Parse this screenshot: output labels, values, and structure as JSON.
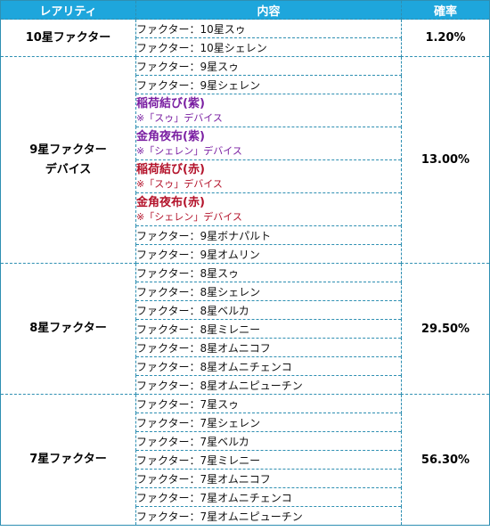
{
  "headers": {
    "rarity": "レアリティ",
    "content": "内容",
    "rate": "確率"
  },
  "groups": [
    {
      "rarity": "10星ファクター",
      "rate": "1.20%",
      "items": [
        "ファクター：10星スゥ",
        "ファクター：10星シェレン"
      ]
    },
    {
      "rarity_line1": "9星ファクター",
      "rarity_line2": "デバイス",
      "rate": "13.00%",
      "items_top": [
        "ファクター：9星スゥ",
        "ファクター：9星シェレン"
      ],
      "specials": [
        {
          "name": "稲荷結び(紫)",
          "note": "※「スゥ」デバイス",
          "color": "#7a1fa2"
        },
        {
          "name": "金角夜布(紫)",
          "note": "※「シェレン」デバイス",
          "color": "#7a1fa2"
        },
        {
          "name": "稲荷結び(赤)",
          "note": "※「スゥ」デバイス",
          "color": "#b3122a"
        },
        {
          "name": "金角夜布(赤)",
          "note": "※「シェレン」デバイス",
          "color": "#b3122a"
        }
      ],
      "items_bottom": [
        "ファクター：9星ボナパルト",
        "ファクター：9星オムリン"
      ]
    },
    {
      "rarity": "8星ファクター",
      "rate": "29.50%",
      "items": [
        "ファクター：8星スゥ",
        "ファクター：8星シェレン",
        "ファクター：8星ベルカ",
        "ファクター：8星ミレニー",
        "ファクター：8星オムニコフ",
        "ファクター：8星オムニチェンコ",
        "ファクター：8星オムニピューチン"
      ]
    },
    {
      "rarity": "7星ファクター",
      "rate": "56.30%",
      "items": [
        "ファクター：7星スゥ",
        "ファクター：7星シェレン",
        "ファクター：7星ベルカ",
        "ファクター：7星ミレニー",
        "ファクター：7星オムニコフ",
        "ファクター：7星オムニチェンコ",
        "ファクター：7星オムニピューチン"
      ]
    }
  ],
  "colors": {
    "header_bg": "#1ea6dc",
    "border": "#2e8fb2",
    "purple": "#7a1fa2",
    "red": "#b3122a"
  }
}
